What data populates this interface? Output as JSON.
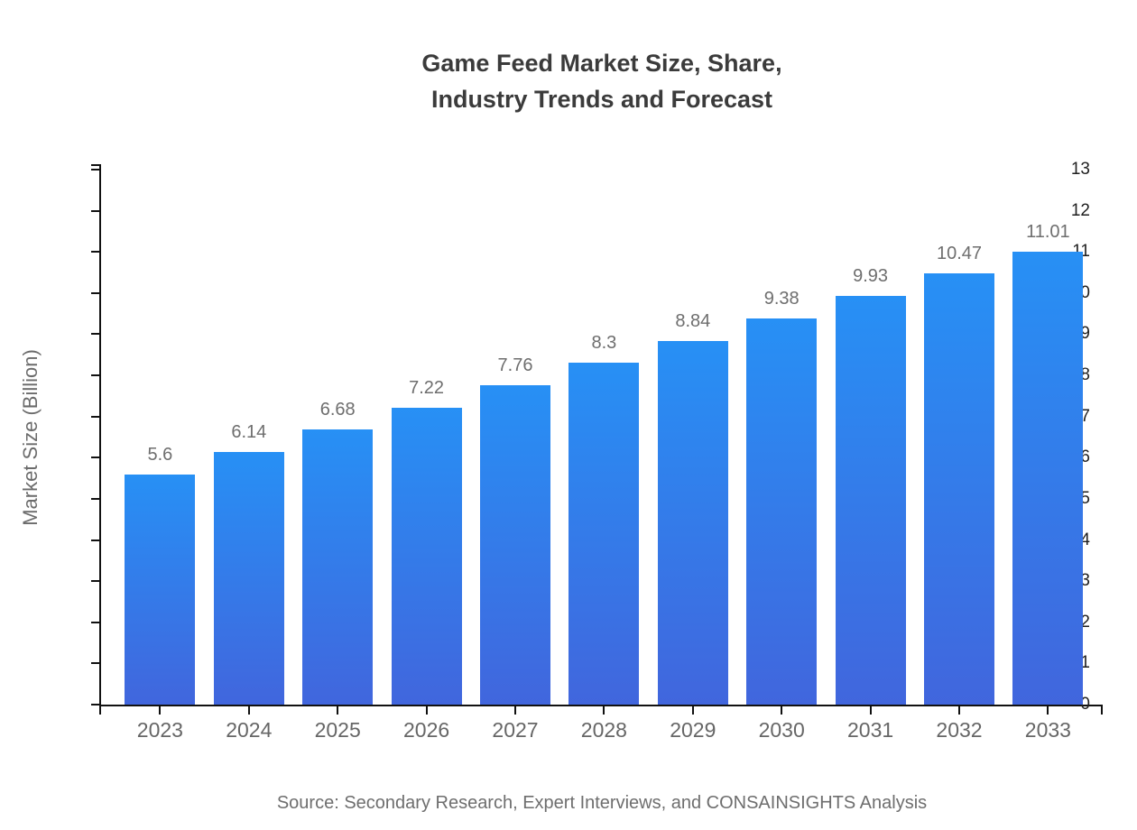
{
  "header": {
    "title_line1": "Game Feed Market Size, Share,",
    "title_line2": "Industry Trends and Forecast"
  },
  "chart_data": {
    "type": "bar",
    "title": "Game Feed Market Size, Share, Industry Trends and Forecast",
    "categories": [
      "2023",
      "2024",
      "2025",
      "2026",
      "2027",
      "2028",
      "2029",
      "2030",
      "2031",
      "2032",
      "2033"
    ],
    "values": [
      5.6,
      6.14,
      6.68,
      7.22,
      7.76,
      8.3,
      8.84,
      9.38,
      9.93,
      10.47,
      11.01
    ],
    "value_labels": [
      "5.6",
      "6.14",
      "6.68",
      "7.22",
      "7.76",
      "8.3",
      "8.84",
      "9.38",
      "9.93",
      "10.47",
      "11.01"
    ],
    "xlabel": "",
    "ylabel": "Market Size (Billion)",
    "ylim": [
      0,
      13
    ],
    "ytick_step": 1,
    "ytick_labels": [
      "0",
      "1",
      "2",
      "3",
      "4",
      "5",
      "6",
      "7",
      "8",
      "9",
      "10",
      "11",
      "12",
      "13"
    ],
    "grid": false,
    "legend": "none",
    "colors": {
      "bar_gradient_top": "#2790F5",
      "bar_gradient_bottom": "#4166DD",
      "axis": "#111111",
      "y_tick_label": "#1f1f1f",
      "x_tick_label": "#666666",
      "value_label": "#6e6e6e",
      "title": "#3b3b3b",
      "background": "#ffffff"
    }
  },
  "footer": {
    "source": "Source: Secondary Research, Expert Interviews, and CONSAINSIGHTS Analysis"
  }
}
